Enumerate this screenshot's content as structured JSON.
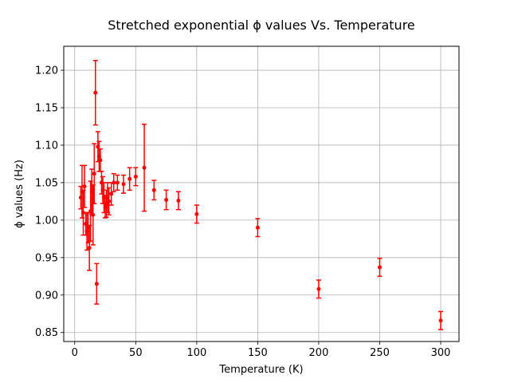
{
  "chart_data": {
    "type": "scatter",
    "title": "Stretched exponential ϕ values Vs. Temperature",
    "xlabel": "Temperature (K)",
    "ylabel": "ϕ values (Hz)",
    "xlim": [
      -9,
      315
    ],
    "ylim": [
      0.838,
      1.232
    ],
    "xticks": [
      0,
      50,
      100,
      150,
      200,
      250,
      300
    ],
    "xtick_labels": [
      "0",
      "50",
      "100",
      "150",
      "200",
      "250",
      "300"
    ],
    "yticks": [
      0.85,
      0.9,
      0.95,
      1.0,
      1.05,
      1.1,
      1.15,
      1.2
    ],
    "ytick_labels": [
      "0.85",
      "0.90",
      "0.95",
      "1.00",
      "1.05",
      "1.10",
      "1.15",
      "1.20"
    ],
    "grid": true,
    "color": "#ff0000",
    "marker": "point-with-errorbars",
    "points": [
      {
        "x": 5,
        "y": 1.03,
        "err": 0.015
      },
      {
        "x": 6,
        "y": 1.038,
        "err": 0.035
      },
      {
        "x": 7,
        "y": 1.01,
        "err": 0.03
      },
      {
        "x": 8,
        "y": 1.045,
        "err": 0.028
      },
      {
        "x": 9,
        "y": 0.995,
        "err": 0.015
      },
      {
        "x": 10,
        "y": 0.985,
        "err": 0.025
      },
      {
        "x": 11,
        "y": 0.99,
        "err": 0.02
      },
      {
        "x": 12,
        "y": 0.963,
        "err": 0.03
      },
      {
        "x": 13,
        "y": 1.012,
        "err": 0.04
      },
      {
        "x": 14,
        "y": 1.038,
        "err": 0.03
      },
      {
        "x": 15,
        "y": 1.007,
        "err": 0.04
      },
      {
        "x": 16,
        "y": 1.062,
        "err": 0.04
      },
      {
        "x": 17,
        "y": 1.17,
        "err": 0.043
      },
      {
        "x": 18,
        "y": 0.915,
        "err": 0.027
      },
      {
        "x": 19,
        "y": 1.098,
        "err": 0.02
      },
      {
        "x": 20,
        "y": 1.085,
        "err": 0.02
      },
      {
        "x": 21,
        "y": 1.08,
        "err": 0.015
      },
      {
        "x": 22,
        "y": 1.05,
        "err": 0.015
      },
      {
        "x": 23,
        "y": 1.04,
        "err": 0.018
      },
      {
        "x": 24,
        "y": 1.03,
        "err": 0.02
      },
      {
        "x": 25,
        "y": 1.018,
        "err": 0.015
      },
      {
        "x": 26,
        "y": 1.022,
        "err": 0.018
      },
      {
        "x": 27,
        "y": 1.03,
        "err": 0.02
      },
      {
        "x": 28,
        "y": 1.025,
        "err": 0.018
      },
      {
        "x": 30,
        "y": 1.035,
        "err": 0.015
      },
      {
        "x": 32,
        "y": 1.05,
        "err": 0.012
      },
      {
        "x": 35,
        "y": 1.05,
        "err": 0.01
      },
      {
        "x": 40,
        "y": 1.048,
        "err": 0.012
      },
      {
        "x": 45,
        "y": 1.055,
        "err": 0.015
      },
      {
        "x": 50,
        "y": 1.058,
        "err": 0.012
      },
      {
        "x": 57,
        "y": 1.07,
        "err": 0.058
      },
      {
        "x": 65,
        "y": 1.04,
        "err": 0.013
      },
      {
        "x": 75,
        "y": 1.027,
        "err": 0.013
      },
      {
        "x": 85,
        "y": 1.026,
        "err": 0.012
      },
      {
        "x": 100,
        "y": 1.008,
        "err": 0.012
      },
      {
        "x": 150,
        "y": 0.99,
        "err": 0.012
      },
      {
        "x": 200,
        "y": 0.908,
        "err": 0.012
      },
      {
        "x": 250,
        "y": 0.937,
        "err": 0.012
      },
      {
        "x": 300,
        "y": 0.866,
        "err": 0.012
      }
    ]
  }
}
